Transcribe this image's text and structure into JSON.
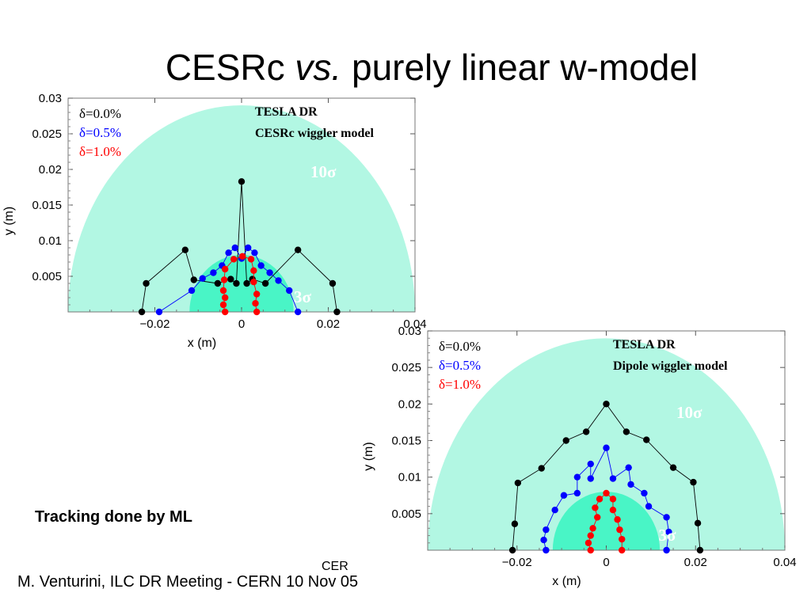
{
  "slide": {
    "title_pre": "CESRc ",
    "title_vs": "vs.",
    "title_post": " purely linear w-model",
    "note": "Tracking done by ML",
    "cern_fragment": "CER",
    "footer": "M. Venturini, ILC DR Meeting - CERN 10 Nov 05"
  },
  "colors": {
    "region_10sigma": "#b2f7e3",
    "region_3sigma": "#49f5c6",
    "delta_0": "#000000",
    "delta_05": "#0000ff",
    "delta_10": "#ff0000"
  },
  "chart_data": [
    {
      "type": "scatter",
      "xlabel": "x (m)",
      "ylabel": "y (m)",
      "xlim": [
        -0.04,
        0.04
      ],
      "ylim": [
        0,
        0.03
      ],
      "x_ticks": [
        "−0.02",
        "0",
        "0.02",
        "0.04"
      ],
      "y_ticks": [
        "0.005",
        "0.01",
        "0.015",
        "0.02",
        "0.025",
        "0.03"
      ],
      "notes": [
        "TESLA DR",
        "CESRc wiggler model"
      ],
      "region_labels": [
        "10σ",
        "3σ"
      ],
      "regions": {
        "outer_ax": 0.04,
        "outer_ay": 0.029,
        "inner_ax": 0.012,
        "inner_ay": 0.008
      },
      "series": [
        {
          "name": "δ=0.0%",
          "color": "#000000",
          "points": [
            [
              -0.023,
              0.0
            ],
            [
              -0.022,
              0.004
            ],
            [
              -0.013,
              0.0087
            ],
            [
              -0.011,
              0.0045
            ],
            [
              -0.0055,
              0.004
            ],
            [
              -0.0025,
              0.0046
            ],
            [
              -0.0012,
              0.004
            ],
            [
              0.0,
              0.0183
            ],
            [
              0.0012,
              0.004
            ],
            [
              0.0025,
              0.0046
            ],
            [
              0.0055,
              0.004
            ],
            [
              0.013,
              0.0087
            ],
            [
              0.021,
              0.004
            ],
            [
              0.022,
              0.0
            ]
          ]
        },
        {
          "name": "δ=0.5%",
          "color": "#0000ff",
          "points": [
            [
              -0.019,
              0.0
            ],
            [
              -0.0115,
              0.003
            ],
            [
              -0.009,
              0.0047
            ],
            [
              -0.0065,
              0.0055
            ],
            [
              -0.0045,
              0.0065
            ],
            [
              -0.003,
              0.0083
            ],
            [
              -0.0015,
              0.009
            ],
            [
              0.0,
              0.0075
            ],
            [
              0.0015,
              0.009
            ],
            [
              0.003,
              0.0083
            ],
            [
              0.0045,
              0.0065
            ],
            [
              0.0065,
              0.0055
            ],
            [
              0.0085,
              0.0044
            ],
            [
              0.011,
              0.003
            ],
            [
              0.013,
              0.0
            ]
          ]
        },
        {
          "name": "δ=1.0%",
          "color": "#ff0000",
          "points": [
            [
              -0.0038,
              0.0
            ],
            [
              -0.0042,
              0.001
            ],
            [
              -0.0038,
              0.002
            ],
            [
              -0.0042,
              0.003
            ],
            [
              -0.004,
              0.0045
            ],
            [
              -0.0038,
              0.006
            ],
            [
              -0.0018,
              0.0074
            ],
            [
              0.0002,
              0.0078
            ],
            [
              0.0022,
              0.0074
            ],
            [
              0.0028,
              0.0058
            ],
            [
              0.0028,
              0.0042
            ],
            [
              0.0035,
              0.0025
            ],
            [
              0.0032,
              0.0012
            ],
            [
              0.0035,
              0.0
            ]
          ]
        }
      ]
    },
    {
      "type": "scatter",
      "xlabel": "x (m)",
      "ylabel": "y (m)",
      "xlim": [
        -0.04,
        0.04
      ],
      "ylim": [
        0,
        0.03
      ],
      "x_ticks": [
        "−0.02",
        "0",
        "0.02",
        "0.04"
      ],
      "y_ticks": [
        "0.005",
        "0.01",
        "0.015",
        "0.02",
        "0.025",
        "0.03"
      ],
      "notes": [
        "TESLA DR",
        "Dipole wiggler model"
      ],
      "region_labels": [
        "10σ",
        "3σ"
      ],
      "regions": {
        "outer_ax": 0.04,
        "outer_ay": 0.029,
        "inner_ax": 0.012,
        "inner_ay": 0.008
      },
      "series": [
        {
          "name": "δ=0.0%",
          "color": "#000000",
          "points": [
            [
              -0.021,
              0.0
            ],
            [
              -0.0205,
              0.0036
            ],
            [
              -0.0198,
              0.0092
            ],
            [
              -0.0145,
              0.0112
            ],
            [
              -0.009,
              0.015
            ],
            [
              -0.0045,
              0.0162
            ],
            [
              0.0,
              0.02
            ],
            [
              0.0045,
              0.0162
            ],
            [
              0.009,
              0.0151
            ],
            [
              0.015,
              0.0113
            ],
            [
              0.0195,
              0.0093
            ],
            [
              0.0205,
              0.0037
            ],
            [
              0.021,
              0.0
            ]
          ]
        },
        {
          "name": "δ=0.5%",
          "color": "#0000ff",
          "points": [
            [
              -0.0135,
              0.0
            ],
            [
              -0.014,
              0.0014
            ],
            [
              -0.0135,
              0.0028
            ],
            [
              -0.0115,
              0.0055
            ],
            [
              -0.0095,
              0.0075
            ],
            [
              -0.0065,
              0.0078
            ],
            [
              -0.0065,
              0.01
            ],
            [
              -0.0035,
              0.0118
            ],
            [
              -0.0035,
              0.0098
            ],
            [
              0.0,
              0.014
            ],
            [
              0.0015,
              0.0098
            ],
            [
              0.005,
              0.0113
            ],
            [
              0.0055,
              0.009
            ],
            [
              0.0085,
              0.0078
            ],
            [
              0.0095,
              0.006
            ],
            [
              0.0135,
              0.0045
            ],
            [
              0.014,
              0.0025
            ],
            [
              0.0135,
              0.0
            ]
          ]
        },
        {
          "name": "δ=1.0%",
          "color": "#ff0000",
          "points": [
            [
              -0.0035,
              0.0
            ],
            [
              -0.004,
              0.001
            ],
            [
              -0.0035,
              0.002
            ],
            [
              -0.003,
              0.003
            ],
            [
              -0.002,
              0.0045
            ],
            [
              -0.0025,
              0.0058
            ],
            [
              -0.0015,
              0.007
            ],
            [
              0.0,
              0.0078
            ],
            [
              0.0015,
              0.007
            ],
            [
              0.0015,
              0.0055
            ],
            [
              0.0025,
              0.0042
            ],
            [
              0.003,
              0.0028
            ],
            [
              0.0035,
              0.0015
            ],
            [
              0.0035,
              0.0
            ]
          ]
        }
      ]
    }
  ]
}
